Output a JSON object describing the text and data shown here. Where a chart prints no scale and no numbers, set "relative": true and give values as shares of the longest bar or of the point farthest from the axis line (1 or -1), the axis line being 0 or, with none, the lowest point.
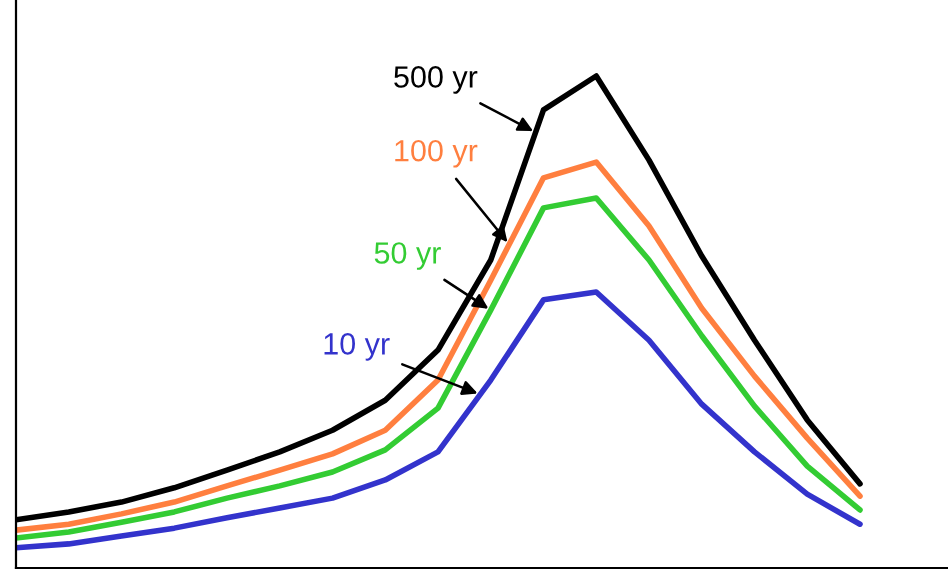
{
  "chart_data": {
    "type": "line",
    "relative": true,
    "categories": [
      null,
      null,
      null,
      null,
      null,
      null,
      null,
      null,
      null,
      null,
      null,
      null,
      null,
      null,
      null,
      null,
      null
    ],
    "series": [
      {
        "name": "500 yr",
        "color": "#000000",
        "values": [
          0.098,
          0.114,
          0.134,
          0.163,
          0.199,
          0.236,
          0.28,
          0.341,
          0.443,
          0.626,
          0.931,
          1.0,
          0.829,
          0.634,
          0.463,
          0.301,
          0.171
        ]
      },
      {
        "name": "100 yr",
        "color": "#ff7f3f",
        "values": [
          0.077,
          0.089,
          0.11,
          0.134,
          0.167,
          0.199,
          0.232,
          0.28,
          0.382,
          0.585,
          0.793,
          0.825,
          0.695,
          0.528,
          0.39,
          0.264,
          0.146
        ]
      },
      {
        "name": "50 yr",
        "color": "#33cc33",
        "values": [
          0.061,
          0.073,
          0.093,
          0.114,
          0.142,
          0.167,
          0.195,
          0.24,
          0.325,
          0.524,
          0.732,
          0.752,
          0.626,
          0.472,
          0.329,
          0.207,
          0.118
        ]
      },
      {
        "name": "10 yr",
        "color": "#3333cc",
        "values": [
          0.041,
          0.049,
          0.065,
          0.081,
          0.102,
          0.122,
          0.142,
          0.179,
          0.236,
          0.382,
          0.545,
          0.561,
          0.463,
          0.333,
          0.236,
          0.15,
          0.089
        ]
      }
    ],
    "marker": "none",
    "line_style": "solid"
  }
}
